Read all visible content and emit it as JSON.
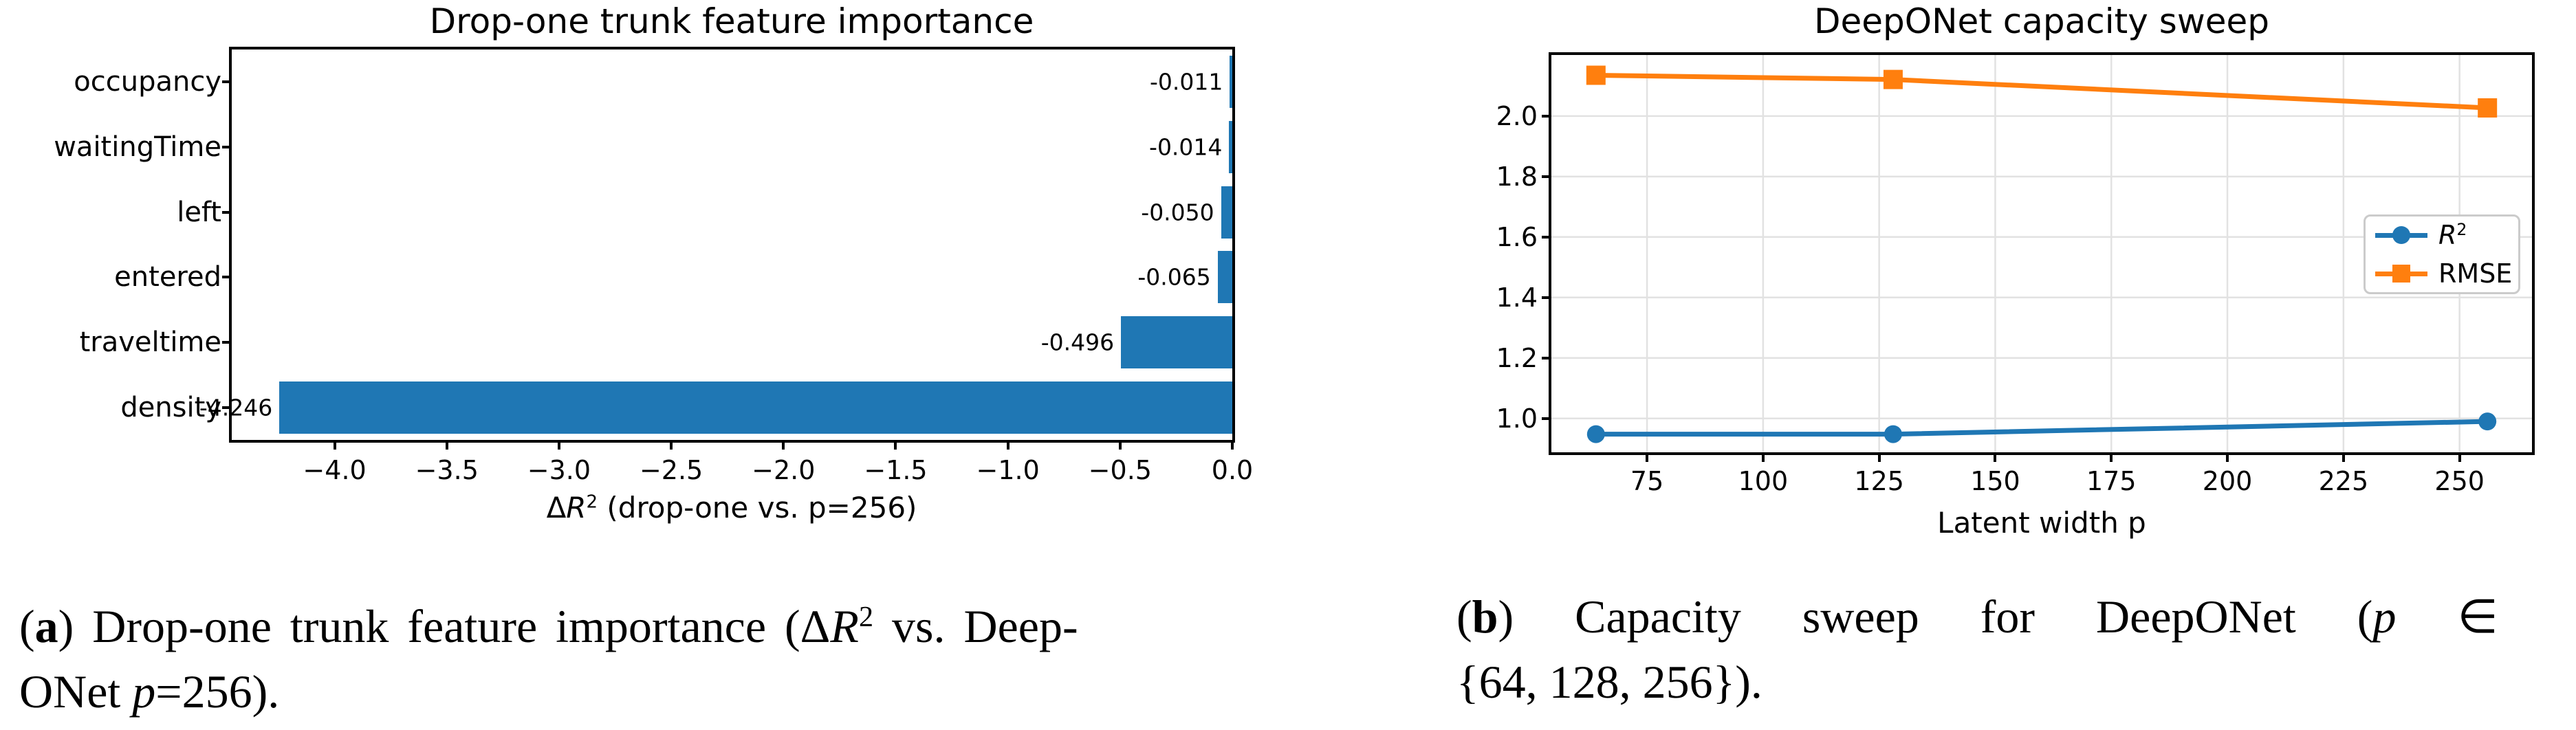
{
  "chart_data": [
    {
      "type": "bar",
      "orientation": "horizontal",
      "title": "Drop-one trunk feature importance",
      "xlabel_text": "ΔR² (drop-one vs. p=256)",
      "xlabel_segments": [
        {
          "t": "Δ"
        },
        {
          "t": "R",
          "i": 1
        },
        {
          "t": "2",
          "s": 1
        },
        {
          "t": " (drop-one vs. p=256)"
        }
      ],
      "categories": [
        "occupancy",
        "waitingTime",
        "left",
        "entered",
        "traveltime",
        "density"
      ],
      "values": [
        -0.011,
        -0.014,
        -0.05,
        -0.065,
        -0.496,
        -4.246
      ],
      "bar_labels": [
        "-0.011",
        "-0.014",
        "-0.050",
        "-0.065",
        "-0.496",
        "-4.246"
      ],
      "bar_color": "#1f77b4",
      "xticks": [
        -4.0,
        -3.5,
        -3.0,
        -2.5,
        -2.0,
        -1.5,
        -1.0,
        -0.5,
        0.0
      ],
      "xtick_labels": [
        "−4.0",
        "−3.5",
        "−3.0",
        "−2.5",
        "−2.0",
        "−1.5",
        "−1.0",
        "−0.5",
        "0.0"
      ],
      "xlim": [
        -4.4583,
        0.0
      ],
      "grid": false,
      "legend_position": "none"
    },
    {
      "type": "line",
      "title": "DeepONet capacity sweep",
      "xlabel": "Latent width p",
      "x": [
        64,
        128,
        256
      ],
      "series": [
        {
          "name": "R²",
          "label_segments": [
            {
              "t": "R",
              "i": 1
            },
            {
              "t": "2",
              "s": 1
            }
          ],
          "color": "#1f77b4",
          "marker": "circle",
          "values": [
            0.948,
            0.948,
            0.99
          ]
        },
        {
          "name": "RMSE",
          "label_segments": [
            {
              "t": "RMSE"
            }
          ],
          "color": "#ff7f0e",
          "marker": "square",
          "values": [
            2.135,
            2.121,
            2.027
          ]
        }
      ],
      "xticks": [
        75,
        100,
        125,
        150,
        175,
        200,
        225,
        250
      ],
      "xtick_labels": [
        "75",
        "100",
        "125",
        "150",
        "175",
        "200",
        "225",
        "250"
      ],
      "yticks": [
        1.0,
        1.2,
        1.4,
        1.6,
        1.8,
        2.0
      ],
      "ytick_labels": [
        "1.0",
        "1.2",
        "1.4",
        "1.6",
        "1.8",
        "2.0"
      ],
      "xlim": [
        54.4,
        265.6
      ],
      "ylim": [
        0.888,
        2.202
      ],
      "grid": true,
      "grid_color": "#e2e2e2",
      "legend_position": "center right"
    }
  ],
  "captions": {
    "a": {
      "lines": [
        [
          {
            "t": "("
          },
          {
            "t": "a",
            "b": 1
          },
          {
            "t": ") Drop-one trunk feature importance (Δ"
          },
          {
            "t": "R",
            "i": 1
          },
          {
            "t": "2",
            "s": 1
          },
          {
            "t": " vs. Deep-"
          }
        ],
        [
          {
            "t": "ONet "
          },
          {
            "t": "p",
            "i": 1
          },
          {
            "t": "=256)."
          }
        ]
      ]
    },
    "b": {
      "lines": [
        [
          {
            "t": "("
          },
          {
            "t": "b",
            "b": 1
          },
          {
            "t": ") Capacity sweep for DeepONet ("
          },
          {
            "t": "p",
            "i": 1
          },
          {
            "t": " ∈"
          }
        ],
        [
          {
            "t": "{64, 128, 256})."
          }
        ]
      ]
    }
  }
}
